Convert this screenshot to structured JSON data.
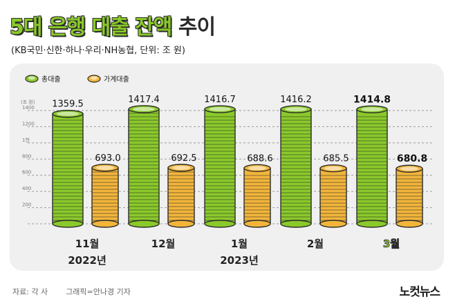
{
  "header": {
    "title_main": "5대 은행 대출 잔액",
    "title_tail": "추이",
    "subtitle": "(KB국민·신한·하나·우리·NH농협, 단위: 조 원)"
  },
  "footer": {
    "source": "자료: 각 사",
    "graphic_credit": "그래픽=안나경 기자",
    "logo": "노컷뉴스"
  },
  "colors": {
    "total": "#8ac92a",
    "household": "#f2b53a",
    "outline": "#2b2b2b",
    "panel": "#f0f0f0"
  },
  "chart_data": {
    "type": "bar",
    "title": "5대 은행 대출 잔액 추이",
    "ylabel": "(조 원)",
    "ylim": [
      0,
      1500
    ],
    "yticks": [
      200,
      400,
      600,
      800,
      1000,
      1200,
      1400
    ],
    "ytick_labels": [
      "200",
      "400",
      "600",
      "800",
      "1천",
      "1200",
      "1400"
    ],
    "legend_position": "top-left",
    "categories": [
      "11월",
      "12월",
      "1월",
      "2월",
      "3월"
    ],
    "category_years": [
      "2022년",
      "",
      "2023년",
      "",
      ""
    ],
    "highlight_index": 4,
    "series": [
      {
        "name": "총대출",
        "values": [
          1359.5,
          1417.4,
          1416.7,
          1416.2,
          1414.8
        ],
        "labels": [
          "1359.5",
          "1417.4",
          "1416.7",
          "1416.2",
          "1414.8"
        ]
      },
      {
        "name": "가계대출",
        "values": [
          693.0,
          692.5,
          688.6,
          685.5,
          680.8
        ],
        "labels": [
          "693.0",
          "692.5",
          "688.6",
          "685.5",
          "680.8"
        ]
      }
    ]
  }
}
